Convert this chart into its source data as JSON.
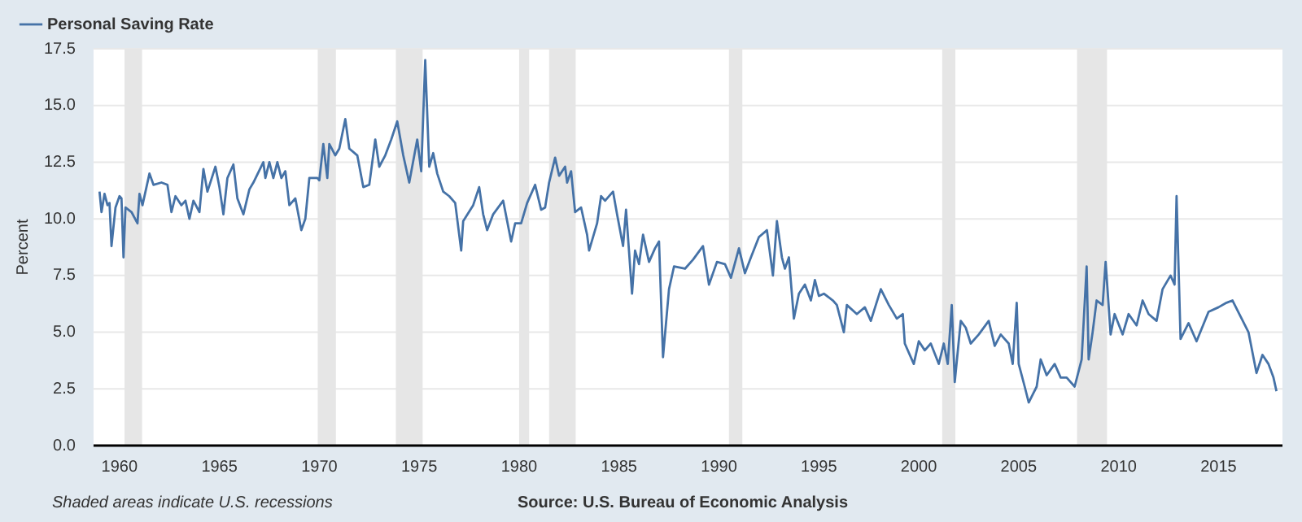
{
  "chart_data": {
    "type": "line",
    "ylabel": "Percent",
    "legend": "top left",
    "grid": "y",
    "marker": "none",
    "line_style": "solid",
    "annotations": [
      "Shaded areas indicate U.S. recessions",
      "Source: U.S. Bureau of Economic Analysis"
    ],
    "xlim": [
      1958.7,
      2018.2
    ],
    "xticks": [
      1960,
      1965,
      1970,
      1975,
      1980,
      1985,
      1990,
      1995,
      2000,
      2005,
      2010,
      2015
    ],
    "ylim": [
      0,
      17.5
    ],
    "yticks": [
      {
        "value": 0,
        "label": "0.0"
      },
      {
        "value": 2.5,
        "label": "2.5"
      },
      {
        "value": 5,
        "label": "5.0"
      },
      {
        "value": 7.5,
        "label": "7.5"
      },
      {
        "value": 10,
        "label": "10.0"
      },
      {
        "value": 12.5,
        "label": "12.5"
      },
      {
        "value": 15,
        "label": "15.0"
      },
      {
        "value": 17.5,
        "label": "17.5"
      }
    ],
    "bands": [
      {
        "axis": "x",
        "from": 1960.25,
        "to": 1961.13,
        "color": "#e6e6e6"
      },
      {
        "axis": "x",
        "from": 1969.92,
        "to": 1970.83,
        "color": "#e6e6e6"
      },
      {
        "axis": "x",
        "from": 1973.83,
        "to": 1975.17,
        "color": "#e6e6e6"
      },
      {
        "axis": "x",
        "from": 1980.0,
        "to": 1980.5,
        "color": "#e6e6e6"
      },
      {
        "axis": "x",
        "from": 1981.5,
        "to": 1982.83,
        "color": "#e6e6e6"
      },
      {
        "axis": "x",
        "from": 1990.5,
        "to": 1991.17,
        "color": "#e6e6e6"
      },
      {
        "axis": "x",
        "from": 2001.17,
        "to": 2001.83,
        "color": "#e6e6e6"
      },
      {
        "axis": "x",
        "from": 2007.92,
        "to": 2009.42,
        "color": "#e6e6e6"
      }
    ],
    "series": [
      {
        "name": "Personal Saving Rate",
        "color": "#4572a7",
        "x": [
          1959.0,
          1959.1,
          1959.25,
          1959.4,
          1959.5,
          1959.6,
          1959.8,
          1960.0,
          1960.1,
          1960.2,
          1960.3,
          1960.6,
          1960.9,
          1961.0,
          1961.15,
          1961.5,
          1961.7,
          1962.1,
          1962.4,
          1962.6,
          1962.8,
          1963.1,
          1963.3,
          1963.5,
          1963.7,
          1964.0,
          1964.2,
          1964.4,
          1964.8,
          1965.0,
          1965.2,
          1965.4,
          1965.7,
          1965.9,
          1966.2,
          1966.5,
          1966.7,
          1967.2,
          1967.3,
          1967.5,
          1967.7,
          1967.9,
          1968.1,
          1968.3,
          1968.5,
          1968.8,
          1969.1,
          1969.3,
          1969.5,
          1969.9,
          1970.0,
          1970.2,
          1970.4,
          1970.5,
          1970.8,
          1971.0,
          1971.3,
          1971.5,
          1971.9,
          1972.2,
          1972.5,
          1972.8,
          1973.0,
          1973.3,
          1973.6,
          1973.9,
          1974.2,
          1974.5,
          1974.9,
          1975.1,
          1975.3,
          1975.5,
          1975.7,
          1975.9,
          1976.2,
          1976.5,
          1976.8,
          1977.1,
          1977.2,
          1977.7,
          1978.0,
          1978.2,
          1978.4,
          1978.7,
          1979.2,
          1979.6,
          1979.8,
          1980.1,
          1980.4,
          1980.8,
          1981.1,
          1981.3,
          1981.5,
          1981.8,
          1982.0,
          1982.3,
          1982.4,
          1982.6,
          1982.8,
          1983.1,
          1983.4,
          1983.5,
          1983.9,
          1984.1,
          1984.3,
          1984.7,
          1984.9,
          1985.2,
          1985.35,
          1985.65,
          1985.8,
          1986.0,
          1986.2,
          1986.5,
          1986.8,
          1987.0,
          1987.2,
          1987.5,
          1987.75,
          1988.3,
          1988.7,
          1989.2,
          1989.5,
          1989.9,
          1990.3,
          1990.6,
          1991.0,
          1991.3,
          1991.6,
          1992.0,
          1992.4,
          1992.7,
          1992.9,
          1993.15,
          1993.3,
          1993.5,
          1993.75,
          1994.0,
          1994.3,
          1994.6,
          1994.8,
          1995.0,
          1995.25,
          1995.7,
          1995.9,
          1996.25,
          1996.4,
          1996.9,
          1997.3,
          1997.6,
          1998.1,
          1998.5,
          1998.9,
          1999.2,
          1999.3,
          1999.75,
          2000.0,
          2000.3,
          2000.6,
          2001.0,
          2001.25,
          2001.45,
          2001.65,
          2001.8,
          2002.1,
          2002.35,
          2002.6,
          2003.0,
          2003.5,
          2003.8,
          2004.1,
          2004.5,
          2004.7,
          2004.9,
          2005.0,
          2005.3,
          2005.5,
          2005.9,
          2006.1,
          2006.4,
          2006.8,
          2007.1,
          2007.4,
          2007.8,
          2008.15,
          2008.4,
          2008.5,
          2008.7,
          2008.9,
          2009.2,
          2009.35,
          2009.6,
          2009.8,
          2010.2,
          2010.5,
          2010.9,
          2011.2,
          2011.5,
          2011.9,
          2012.2,
          2012.6,
          2012.8,
          2012.9,
          2013.1,
          2013.5,
          2013.9,
          2014.5,
          2015.0,
          2015.4,
          2015.7,
          2016.1,
          2016.5,
          2016.9,
          2017.2,
          2017.5,
          2017.75,
          2017.9
        ],
        "values": [
          11.2,
          10.3,
          11.1,
          10.6,
          10.7,
          8.8,
          10.5,
          11.0,
          10.9,
          8.3,
          10.5,
          10.3,
          9.8,
          11.1,
          10.6,
          12.0,
          11.5,
          11.6,
          11.5,
          10.3,
          11.0,
          10.6,
          10.8,
          10.0,
          10.8,
          10.3,
          12.2,
          11.2,
          12.3,
          11.4,
          10.2,
          11.8,
          12.4,
          10.9,
          10.2,
          11.3,
          11.6,
          12.5,
          11.8,
          12.5,
          11.8,
          12.5,
          11.8,
          12.1,
          10.6,
          10.9,
          9.5,
          10.0,
          11.8,
          11.8,
          11.7,
          13.3,
          11.8,
          13.3,
          12.8,
          13.1,
          14.4,
          13.1,
          12.8,
          11.4,
          11.5,
          13.5,
          12.3,
          12.8,
          13.5,
          14.3,
          12.8,
          11.6,
          13.5,
          12.1,
          17.0,
          12.3,
          12.9,
          12.0,
          11.2,
          11.0,
          10.7,
          8.6,
          9.9,
          10.6,
          11.4,
          10.2,
          9.5,
          10.2,
          10.8,
          9.0,
          9.8,
          9.8,
          10.7,
          11.5,
          10.4,
          10.5,
          11.6,
          12.7,
          11.9,
          12.3,
          11.6,
          12.1,
          10.3,
          10.5,
          9.3,
          8.6,
          9.8,
          11.0,
          10.8,
          11.2,
          10.2,
          8.8,
          10.4,
          6.7,
          8.6,
          8.0,
          9.3,
          8.1,
          8.7,
          9.0,
          3.9,
          6.9,
          7.9,
          7.8,
          8.2,
          8.8,
          7.1,
          8.1,
          8.0,
          7.4,
          8.7,
          7.6,
          8.3,
          9.2,
          9.5,
          7.5,
          9.9,
          8.3,
          7.8,
          8.3,
          5.6,
          6.7,
          7.1,
          6.4,
          7.3,
          6.6,
          6.7,
          6.4,
          6.2,
          5.0,
          6.2,
          5.8,
          6.1,
          5.5,
          6.9,
          6.2,
          5.6,
          5.8,
          4.5,
          3.6,
          4.6,
          4.2,
          4.5,
          3.6,
          4.5,
          3.6,
          6.2,
          2.8,
          5.5,
          5.2,
          4.5,
          4.9,
          5.5,
          4.4,
          4.9,
          4.5,
          3.6,
          6.3,
          3.6,
          2.6,
          1.9,
          2.6,
          3.8,
          3.1,
          3.6,
          3.0,
          3.0,
          2.6,
          3.8,
          7.9,
          3.8,
          5.0,
          6.4,
          6.2,
          8.1,
          4.9,
          5.8,
          4.9,
          5.8,
          5.3,
          6.4,
          5.8,
          5.5,
          6.9,
          7.5,
          7.1,
          11.0,
          4.7,
          5.4,
          4.6,
          5.9,
          6.1,
          6.3,
          6.4,
          5.7,
          5.0,
          3.2,
          4.0,
          3.6,
          3.0,
          2.4
        ]
      }
    ]
  }
}
